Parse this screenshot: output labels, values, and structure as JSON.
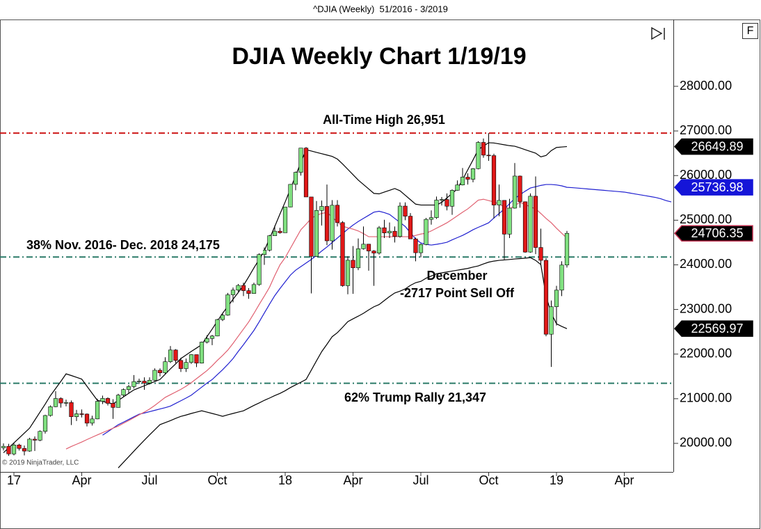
{
  "header": "^DJIA (Weekly)  51/2016 - 3/2019",
  "chart_data": {
    "type": "candlestick",
    "title": "DJIA Weekly Chart 1/19/19",
    "copyright": "© 2019 NinjaTrader, LLC",
    "button": "F",
    "annotations": [
      "All-Time High 26,951",
      "38% Nov. 2016- Dec. 2018 24,175",
      "December",
      "-2717 Point Sell Off",
      "62% Trump Rally 21,347"
    ],
    "categories": [
      null,
      null,
      "17",
      null,
      null,
      null,
      null,
      null,
      null,
      null,
      null,
      null,
      null,
      null,
      null,
      "Apr",
      null,
      null,
      null,
      null,
      null,
      null,
      null,
      null,
      null,
      null,
      null,
      null,
      "Jul",
      null,
      null,
      null,
      null,
      null,
      null,
      null,
      null,
      null,
      null,
      null,
      null,
      "Oct",
      null,
      null,
      null,
      null,
      null,
      null,
      null,
      null,
      null,
      null,
      null,
      null,
      "18",
      null,
      null,
      null,
      null,
      null,
      null,
      null,
      null,
      null,
      null,
      null,
      null,
      "Apr",
      null,
      null,
      null,
      null,
      null,
      null,
      null,
      null,
      null,
      null,
      null,
      null,
      "Jul",
      null,
      null,
      null,
      null,
      null,
      null,
      null,
      null,
      null,
      null,
      null,
      null,
      "Oct",
      null,
      null,
      null,
      null,
      null,
      null,
      null,
      null,
      null,
      null,
      null,
      null,
      "19",
      null,
      null,
      null,
      null,
      null,
      null,
      null,
      null,
      null,
      null,
      null,
      null,
      "Apr",
      null,
      null,
      null,
      null,
      null,
      null,
      null,
      null,
      null
    ],
    "open": [
      19900,
      19934,
      19763,
      19964,
      19886,
      19827,
      20094,
      20071,
      20269,
      20624,
      20822,
      21005,
      20903,
      20915,
      20597,
      20663,
      20656,
      20453,
      20548,
      20941,
      21007,
      20897,
      20805,
      21080,
      21206,
      21272,
      21384,
      21395,
      21350,
      21414,
      21638,
      21580,
      21830,
      22092,
      21858,
      21675,
      21814,
      21988,
      21798,
      22268,
      22350,
      22405,
      22774,
      22872,
      23329,
      23434,
      23539,
      23422,
      23358,
      23558,
      24231,
      24329,
      24652,
      24754,
      24719,
      25295,
      25803,
      26072,
      26616,
      25521,
      24191,
      25219,
      25310,
      24538,
      25336,
      24947,
      23533,
      24103,
      23933,
      24360,
      24463,
      24311,
      24263,
      24831,
      24715,
      24753,
      24635,
      25317,
      25090,
      24581,
      24271,
      24456,
      25019,
      25058,
      25451,
      25463,
      25313,
      25669,
      25790,
      25965,
      25917,
      26155,
      26744,
      26458,
      26447,
      25340,
      25444,
      24688,
      25271,
      25989,
      25413,
      24286,
      25538,
      24389,
      24101,
      22445,
      23062,
      23433,
      23996,
      null,
      null,
      null,
      null,
      null,
      null,
      null,
      null,
      null,
      null,
      null,
      null,
      null,
      null,
      null,
      null,
      null,
      null,
      null,
      null
    ],
    "high": [
      20000,
      19990,
      19999,
      19990,
      19950,
      20125,
      20155,
      20290,
      20640,
      20850,
      21170,
      21030,
      20980,
      20960,
      20750,
      20760,
      20670,
      20620,
      21000,
      21070,
      21030,
      20990,
      21110,
      21230,
      21310,
      21530,
      21450,
      21480,
      21480,
      21680,
      21680,
      21930,
      22180,
      22110,
      21920,
      21900,
      22000,
      21990,
      22280,
      22420,
      22430,
      22790,
      22900,
      23370,
      23490,
      23570,
      23600,
      23480,
      23600,
      24330,
      24390,
      24670,
      24880,
      24830,
      25300,
      25810,
      26090,
      26620,
      26640,
      25520,
      25430,
      25440,
      25800,
      25450,
      25450,
      24980,
      24190,
      24420,
      24590,
      24860,
      24470,
      24330,
      24870,
      25010,
      24950,
      24860,
      25400,
      25400,
      25160,
      24610,
      24480,
      25050,
      25220,
      25530,
      25520,
      25600,
      25690,
      25890,
      26170,
      26050,
      26170,
      26770,
      26830,
      26951,
      26490,
      25800,
      25450,
      25480,
      26280,
      26000,
      25420,
      25600,
      25980,
      24810,
      24150,
      23200,
      23530,
      24080,
      24760,
      null,
      null,
      null,
      null,
      null,
      null,
      null,
      null,
      null,
      null,
      null,
      null,
      null,
      null,
      null,
      null,
      null,
      null,
      null,
      null
    ],
    "low": [
      19840,
      19720,
      19730,
      19840,
      19730,
      19810,
      19830,
      20050,
      20220,
      20600,
      20810,
      20800,
      20830,
      20410,
      20500,
      20580,
      20380,
      20400,
      20540,
      20880,
      20850,
      20550,
      20800,
      21050,
      21110,
      21230,
      21330,
      21200,
      21320,
      21400,
      21500,
      21550,
      21800,
      21800,
      21600,
      21600,
      21780,
      21710,
      21790,
      22240,
      22200,
      22400,
      22740,
      22860,
      23160,
      23400,
      23300,
      23240,
      23350,
      23530,
      24000,
      24300,
      24650,
      24700,
      24740,
      25290,
      25670,
      26000,
      25520,
      23360,
      24180,
      24880,
      24440,
      24340,
      24860,
      23510,
      23340,
      23350,
      23880,
      24340,
      23870,
      23530,
      24230,
      24600,
      24600,
      24500,
      24610,
      25000,
      24580,
      24080,
      24170,
      24440,
      24900,
      25030,
      25330,
      25220,
      25120,
      25660,
      25780,
      25800,
      25850,
      26140,
      26400,
      26330,
      25040,
      25090,
      24120,
      24600,
      25260,
      25280,
      24270,
      24270,
      24240,
      24000,
      22400,
      21713,
      22640,
      23300,
      23940,
      null,
      null,
      null,
      null,
      null,
      null,
      null,
      null,
      null,
      null,
      null,
      null,
      null,
      null,
      null,
      null,
      null,
      null,
      null,
      null
    ],
    "close": [
      19934,
      19763,
      19964,
      19886,
      19827,
      20094,
      20071,
      20269,
      20624,
      20822,
      21005,
      20903,
      20915,
      20597,
      20663,
      20656,
      20453,
      20548,
      20941,
      21007,
      20897,
      20805,
      21080,
      21206,
      21272,
      21384,
      21395,
      21350,
      21414,
      21638,
      21580,
      21830,
      22092,
      21858,
      21675,
      21814,
      21988,
      21798,
      22268,
      22350,
      22405,
      22774,
      22872,
      23329,
      23434,
      23539,
      23422,
      23358,
      23558,
      24231,
      24329,
      24652,
      24754,
      24719,
      25295,
      25803,
      26072,
      26616,
      25521,
      24191,
      25219,
      25310,
      24538,
      25336,
      24947,
      23533,
      24103,
      23933,
      24360,
      24463,
      24311,
      24263,
      24831,
      24715,
      24753,
      24635,
      25317,
      25090,
      24581,
      24271,
      24456,
      25019,
      25058,
      25451,
      25463,
      25313,
      25669,
      25790,
      25965,
      25917,
      26155,
      26744,
      26458,
      26447,
      25340,
      25444,
      24688,
      25271,
      25989,
      25413,
      24286,
      25538,
      24389,
      24101,
      22445,
      23062,
      23433,
      23996,
      24706.35,
      null,
      null,
      null,
      null,
      null,
      null,
      null,
      null,
      null,
      null,
      null,
      null,
      null,
      null,
      null,
      null,
      null,
      null,
      null,
      null
    ],
    "up_color": "#80e080",
    "down_color": "#e01818",
    "close_tag_color": "#c03050",
    "overlays": [
      {
        "color": "#000000",
        "tag_color": "#000000",
        "values": [
          19790,
          19900,
          20010,
          20120,
          20230,
          20340,
          20520,
          20700,
          20880,
          21070,
          21230,
          21390,
          21557,
          21520,
          21480,
          21440,
          21280,
          21120,
          20964,
          20940,
          20910,
          20886,
          20960,
          21040,
          21120,
          21198,
          21245,
          21290,
          21340,
          21385,
          21432,
          21550,
          21670,
          21780,
          21900,
          21980,
          22060,
          22135,
          22212,
          22390,
          22560,
          22740,
          22914,
          23070,
          23230,
          23380,
          23538,
          23730,
          23930,
          24120,
          24318,
          24590,
          24860,
          25140,
          25410,
          25700,
          26000,
          26290,
          26580,
          26550,
          26520,
          26490,
          26460,
          26430,
          26370,
          26260,
          26140,
          26020,
          25900,
          25800,
          25700,
          25600,
          25590,
          25630,
          25670,
          25710,
          25660,
          25560,
          25460,
          25360,
          25340,
          25340,
          25340,
          25340,
          25400,
          25500,
          25600,
          25700,
          25910,
          26130,
          26350,
          26580,
          26660,
          26736,
          26730,
          26710,
          26690,
          26670,
          26658,
          26620,
          26580,
          26540,
          26502,
          26420,
          26450,
          26560,
          26630,
          26640,
          26649.89,
          null,
          null,
          null,
          null,
          null,
          null,
          null,
          null,
          null,
          null,
          null,
          null,
          null,
          null,
          null,
          null,
          null,
          null,
          null,
          null
        ]
      },
      {
        "color": "#000000",
        "tag_color": "#000000",
        "values": [
          null,
          null,
          null,
          null,
          null,
          null,
          null,
          null,
          null,
          null,
          null,
          null,
          null,
          null,
          null,
          null,
          null,
          null,
          null,
          null,
          null,
          null,
          19451,
          19575,
          19700,
          19825,
          19950,
          20070,
          20190,
          20305,
          20420,
          20465,
          20510,
          20560,
          20605,
          20635,
          20670,
          20700,
          20730,
          20700,
          20670,
          20640,
          20606,
          20640,
          20670,
          20700,
          20730,
          20790,
          20850,
          20905,
          20964,
          21015,
          21070,
          21120,
          21180,
          21250,
          21310,
          21370,
          21432,
          21640,
          21850,
          22056,
          22220,
          22390,
          22480,
          22600,
          22727,
          22790,
          22850,
          22914,
          22990,
          23060,
          23110,
          23200,
          23290,
          23370,
          23410,
          23460,
          23540,
          23600,
          23630,
          23700,
          23750,
          23800,
          23820,
          23840,
          23860,
          23880,
          23900,
          23920,
          23950,
          23975,
          24020,
          24060,
          24084,
          24100,
          24110,
          24120,
          24131,
          24140,
          24150,
          24162,
          24100,
          24006,
          23300,
          22914,
          22680,
          22620,
          22569.97,
          null,
          null,
          null,
          null,
          null,
          null,
          null,
          null,
          null,
          null,
          null,
          null,
          null,
          null,
          null,
          null,
          null,
          null,
          null,
          null
        ]
      },
      {
        "color": "#2020d0",
        "tag_color": "#1515d8",
        "values": [
          null,
          null,
          null,
          null,
          null,
          null,
          null,
          null,
          null,
          null,
          null,
          null,
          null,
          null,
          null,
          null,
          null,
          null,
          null,
          20184,
          20260,
          20340,
          20418,
          20475,
          20535,
          20595,
          20653,
          20680,
          20710,
          20740,
          20770,
          20800,
          20835,
          20895,
          20955,
          21015,
          21080,
          21170,
          21260,
          21350,
          21430,
          21540,
          21650,
          21770,
          21900,
          22060,
          22210,
          22370,
          22530,
          22720,
          22920,
          23120,
          23310,
          23470,
          23620,
          23770,
          23880,
          23960,
          24040,
          24120,
          24210,
          24310,
          24400,
          24500,
          24600,
          24700,
          24800,
          24890,
          24970,
          25040,
          25110,
          25180,
          25200,
          25170,
          25130,
          25040,
          24950,
          24860,
          24720,
          24580,
          24490,
          24460,
          24443,
          24460,
          24480,
          24506,
          24560,
          24610,
          24660,
          24720,
          24786,
          24840,
          24890,
          24942,
          25050,
          25150,
          25250,
          25370,
          25488,
          25570,
          25650,
          25722,
          25750,
          25780,
          25800,
          25800,
          25790,
          25770,
          25736.98,
          25730,
          25720,
          25710,
          25700,
          25690,
          25680,
          25670,
          25660,
          25650,
          25640,
          25630,
          25610,
          25590,
          25570,
          25550,
          25530,
          25510,
          25480,
          25440,
          25410
        ]
      },
      {
        "color": "#e06070",
        "values": [
          null,
          null,
          null,
          null,
          null,
          null,
          null,
          null,
          null,
          null,
          null,
          null,
          19874,
          19930,
          19980,
          20030,
          20085,
          20138,
          20190,
          20240,
          20290,
          20340,
          20387,
          20450,
          20510,
          20575,
          20640,
          20700,
          20770,
          20850,
          20940,
          21030,
          21090,
          21150,
          21210,
          21280,
          21360,
          21450,
          21540,
          21630,
          21740,
          21860,
          21970,
          22090,
          22240,
          22400,
          22560,
          22720,
          22910,
          23110,
          23300,
          23500,
          23760,
          24000,
          24162,
          24370,
          24580,
          24786,
          24910,
          25040,
          25110,
          25150,
          25176,
          25070,
          24960,
          24865,
          24830,
          24800,
          24760,
          24700,
          24630,
          24630,
          24630,
          24630,
          24630,
          24630,
          24630,
          24630,
          24630,
          24660,
          24690,
          24708,
          24760,
          24820,
          24880,
          24942,
          25020,
          25100,
          25180,
          25254,
          25350,
          25450,
          25470,
          25440,
          25410,
          25360,
          25300,
          25254,
          25330,
          25400,
          25350,
          25300,
          25254,
          25150,
          25040,
          24942,
          24820,
          24708,
          24599,
          null,
          null,
          null,
          null,
          null,
          null,
          null,
          null,
          null,
          null,
          null,
          null,
          null,
          null,
          null,
          null,
          null,
          null,
          null,
          null
        ]
      }
    ],
    "levels": [
      {
        "value": 26951,
        "color": "#cc1010"
      },
      {
        "value": 24175,
        "color": "#2a7a68"
      },
      {
        "value": 21347,
        "color": "#2a7a68"
      }
    ],
    "ylim": [
      19360,
      29466
    ],
    "yticks": [
      {
        "value": 20000,
        "label": "20000.00"
      },
      {
        "value": 21000,
        "label": "21000.00"
      },
      {
        "value": 22000,
        "label": "22000.00"
      },
      {
        "value": 23000,
        "label": "23000.00"
      },
      {
        "value": 24000,
        "label": "24000.00"
      },
      {
        "value": 25000,
        "label": "25000.00"
      },
      {
        "value": 26000,
        "label": "26000.00"
      },
      {
        "value": 27000,
        "label": "27000.00"
      },
      {
        "value": 28000,
        "label": "28000.00"
      }
    ],
    "grid": false
  }
}
